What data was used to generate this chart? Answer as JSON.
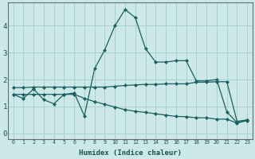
{
  "xlabel": "Humidex (Indice chaleur)",
  "bg_color": "#cce8e8",
  "line_color": "#1a6060",
  "grid_color": "#aad0d0",
  "xlim": [
    -0.5,
    23.5
  ],
  "ylim": [
    -0.2,
    4.85
  ],
  "xticks": [
    0,
    1,
    2,
    3,
    4,
    5,
    6,
    7,
    8,
    9,
    10,
    11,
    12,
    13,
    14,
    15,
    16,
    17,
    18,
    19,
    20,
    21,
    22,
    23
  ],
  "yticks": [
    0,
    1,
    2,
    3,
    4
  ],
  "series1_x": [
    0,
    1,
    2,
    3,
    4,
    5,
    6,
    7,
    8,
    9,
    10,
    11,
    12,
    13,
    14,
    15,
    16,
    17,
    18,
    19,
    20,
    21,
    22,
    23
  ],
  "series1_y": [
    1.45,
    1.3,
    1.65,
    1.25,
    1.1,
    1.45,
    1.5,
    0.65,
    2.4,
    3.1,
    4.0,
    4.6,
    4.3,
    3.15,
    2.65,
    2.65,
    2.7,
    2.7,
    1.95,
    1.95,
    2.0,
    0.8,
    0.4,
    0.5
  ],
  "series2_x": [
    0,
    1,
    2,
    3,
    4,
    5,
    6,
    7,
    8,
    9,
    10,
    11,
    12,
    13,
    14,
    15,
    16,
    17,
    18,
    19,
    20,
    21,
    22,
    23
  ],
  "series2_y": [
    1.7,
    1.7,
    1.72,
    1.72,
    1.72,
    1.72,
    1.72,
    1.72,
    1.72,
    1.72,
    1.75,
    1.78,
    1.8,
    1.82,
    1.82,
    1.84,
    1.84,
    1.84,
    1.9,
    1.9,
    1.92,
    1.92,
    0.45,
    0.5
  ],
  "series3_x": [
    0,
    1,
    2,
    3,
    4,
    5,
    6,
    7,
    8,
    9,
    10,
    11,
    12,
    13,
    14,
    15,
    16,
    17,
    18,
    19,
    20,
    21,
    22,
    23
  ],
  "series3_y": [
    1.45,
    1.45,
    1.45,
    1.45,
    1.45,
    1.45,
    1.45,
    1.3,
    1.18,
    1.08,
    0.98,
    0.88,
    0.82,
    0.78,
    0.73,
    0.68,
    0.63,
    0.62,
    0.58,
    0.58,
    0.53,
    0.53,
    0.38,
    0.48
  ]
}
